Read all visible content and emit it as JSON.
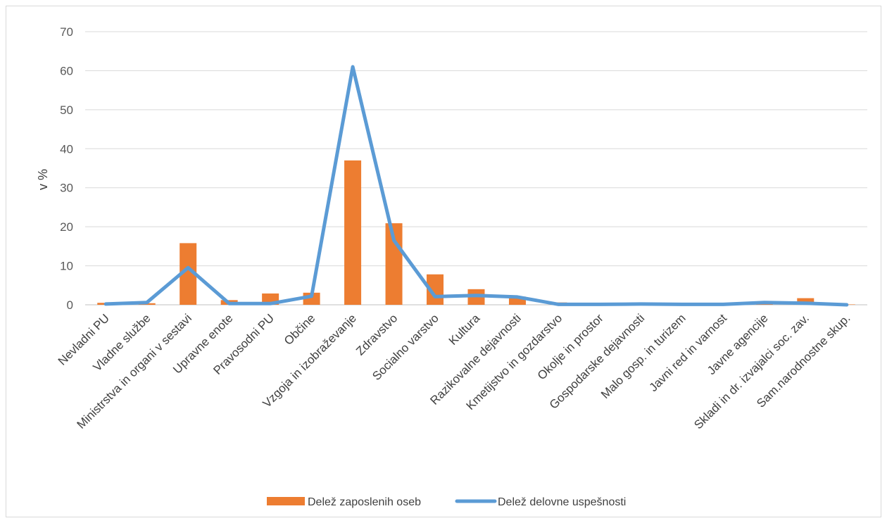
{
  "chart_data": {
    "type": "bar",
    "title": "",
    "xlabel": "",
    "ylabel": "v %",
    "ylim": [
      0,
      70
    ],
    "yticks": [
      0,
      10,
      20,
      30,
      40,
      50,
      60,
      70
    ],
    "grid": true,
    "legend_position": "bottom",
    "categories": [
      "Nevladni PU",
      "Vladne službe",
      "Ministrstva in organi v sestavi",
      "Upravne enote",
      "Pravosodni PU",
      "Občine",
      "Vzgoja in izobraževanje",
      "Zdravstvo",
      "Socialno varstvo",
      "Kultura",
      "Razikovalne dejavnosti",
      "Kmetijstvo in gozdarstvo",
      "Okolje in prostor",
      "Gospodarske dejavnosti",
      "Malo gosp. in turizem",
      "Javni red in varnost",
      "Javne agencije",
      "Skladi in dr. izvajalci soc. zav.",
      "Sam.narodnostne skup."
    ],
    "series": [
      {
        "name": "Delež zaposlenih oseb",
        "kind": "bar",
        "color": "#ED7D31",
        "values": [
          0.5,
          0.4,
          15.8,
          1.2,
          2.9,
          3.1,
          37.0,
          20.9,
          7.8,
          4.0,
          2.1,
          0.6,
          0.1,
          0.2,
          0.1,
          0.1,
          0.7,
          1.7,
          0.1
        ]
      },
      {
        "name": "Delež delovne uspešnosti",
        "kind": "line",
        "color": "#5B9BD5",
        "values": [
          0.2,
          0.6,
          9.5,
          0.3,
          0.3,
          2.2,
          61.0,
          16.5,
          2.1,
          2.4,
          2.0,
          0.1,
          0.1,
          0.2,
          0.1,
          0.1,
          0.6,
          0.4,
          0.0
        ]
      }
    ]
  }
}
